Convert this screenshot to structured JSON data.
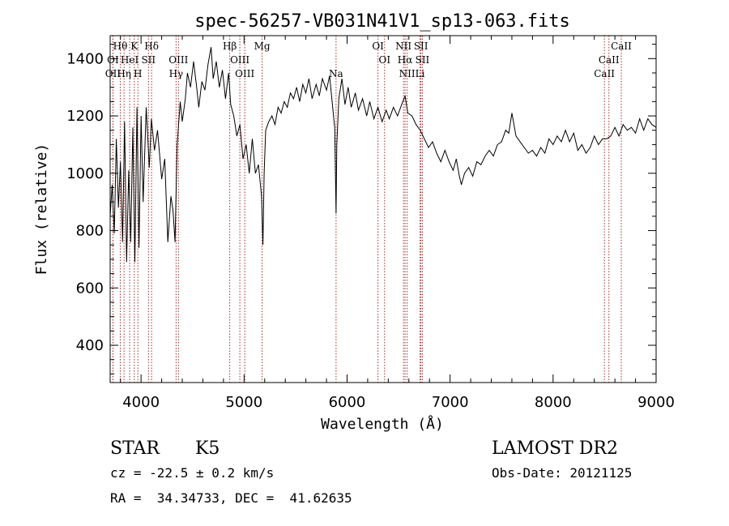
{
  "chart_data": {
    "type": "line",
    "title": "spec-56257-VB031N41V1_sp13-063.fits",
    "xlabel": "Wavelength (Å)",
    "ylabel": "Flux (relative)",
    "xlim": [
      3700,
      9000
    ],
    "ylim": [
      270,
      1480
    ],
    "xticks": [
      4000,
      5000,
      6000,
      7000,
      8000,
      9000
    ],
    "yticks": [
      400,
      600,
      800,
      1000,
      1200,
      1400
    ],
    "grid": false,
    "line_color": "#000000",
    "marker_color": "#a52a2a",
    "spectrum": [
      [
        3700,
        850
      ],
      [
        3720,
        960
      ],
      [
        3740,
        790
      ],
      [
        3760,
        1120
      ],
      [
        3780,
        880
      ],
      [
        3800,
        1040
      ],
      [
        3820,
        760
      ],
      [
        3840,
        1180
      ],
      [
        3860,
        690
      ],
      [
        3880,
        1010
      ],
      [
        3900,
        760
      ],
      [
        3920,
        1160
      ],
      [
        3940,
        690
      ],
      [
        3960,
        1230
      ],
      [
        3980,
        740
      ],
      [
        4000,
        1200
      ],
      [
        4020,
        900
      ],
      [
        4050,
        1230
      ],
      [
        4080,
        1020
      ],
      [
        4100,
        1190
      ],
      [
        4130,
        1080
      ],
      [
        4160,
        1150
      ],
      [
        4200,
        980
      ],
      [
        4230,
        1050
      ],
      [
        4260,
        760
      ],
      [
        4290,
        920
      ],
      [
        4310,
        870
      ],
      [
        4330,
        760
      ],
      [
        4350,
        1100
      ],
      [
        4380,
        1250
      ],
      [
        4400,
        1180
      ],
      [
        4430,
        1260
      ],
      [
        4450,
        1350
      ],
      [
        4480,
        1300
      ],
      [
        4510,
        1390
      ],
      [
        4540,
        1300
      ],
      [
        4560,
        1230
      ],
      [
        4590,
        1320
      ],
      [
        4620,
        1290
      ],
      [
        4650,
        1380
      ],
      [
        4680,
        1440
      ],
      [
        4700,
        1330
      ],
      [
        4730,
        1390
      ],
      [
        4760,
        1300
      ],
      [
        4790,
        1360
      ],
      [
        4820,
        1260
      ],
      [
        4850,
        1350
      ],
      [
        4870,
        1240
      ],
      [
        4900,
        1200
      ],
      [
        4930,
        1130
      ],
      [
        4960,
        1170
      ],
      [
        4990,
        1050
      ],
      [
        5020,
        1100
      ],
      [
        5050,
        1000
      ],
      [
        5080,
        1120
      ],
      [
        5110,
        1000
      ],
      [
        5140,
        1030
      ],
      [
        5170,
        920
      ],
      [
        5183,
        750
      ],
      [
        5195,
        1000
      ],
      [
        5210,
        1150
      ],
      [
        5240,
        1180
      ],
      [
        5270,
        1200
      ],
      [
        5300,
        1170
      ],
      [
        5330,
        1230
      ],
      [
        5360,
        1210
      ],
      [
        5390,
        1250
      ],
      [
        5420,
        1230
      ],
      [
        5450,
        1280
      ],
      [
        5480,
        1260
      ],
      [
        5510,
        1300
      ],
      [
        5540,
        1250
      ],
      [
        5570,
        1310
      ],
      [
        5600,
        1280
      ],
      [
        5630,
        1330
      ],
      [
        5660,
        1260
      ],
      [
        5700,
        1310
      ],
      [
        5730,
        1270
      ],
      [
        5760,
        1330
      ],
      [
        5800,
        1290
      ],
      [
        5830,
        1340
      ],
      [
        5860,
        1230
      ],
      [
        5880,
        1160
      ],
      [
        5893,
        860
      ],
      [
        5900,
        1100
      ],
      [
        5920,
        1260
      ],
      [
        5950,
        1330
      ],
      [
        5980,
        1240
      ],
      [
        6010,
        1300
      ],
      [
        6040,
        1230
      ],
      [
        6080,
        1280
      ],
      [
        6110,
        1220
      ],
      [
        6150,
        1260
      ],
      [
        6190,
        1200
      ],
      [
        6220,
        1250
      ],
      [
        6260,
        1190
      ],
      [
        6300,
        1230
      ],
      [
        6340,
        1180
      ],
      [
        6380,
        1220
      ],
      [
        6410,
        1190
      ],
      [
        6450,
        1230
      ],
      [
        6490,
        1200
      ],
      [
        6530,
        1240
      ],
      [
        6563,
        1270
      ],
      [
        6590,
        1210
      ],
      [
        6630,
        1200
      ],
      [
        6670,
        1170
      ],
      [
        6710,
        1150
      ],
      [
        6750,
        1120
      ],
      [
        6790,
        1090
      ],
      [
        6830,
        1110
      ],
      [
        6870,
        1070
      ],
      [
        6910,
        1040
      ],
      [
        6950,
        1080
      ],
      [
        6990,
        1040
      ],
      [
        7030,
        1010
      ],
      [
        7060,
        1050
      ],
      [
        7090,
        990
      ],
      [
        7110,
        960
      ],
      [
        7140,
        1000
      ],
      [
        7180,
        1020
      ],
      [
        7220,
        990
      ],
      [
        7260,
        1040
      ],
      [
        7300,
        1030
      ],
      [
        7340,
        1060
      ],
      [
        7380,
        1080
      ],
      [
        7420,
        1060
      ],
      [
        7460,
        1100
      ],
      [
        7500,
        1110
      ],
      [
        7540,
        1150
      ],
      [
        7570,
        1140
      ],
      [
        7600,
        1210
      ],
      [
        7640,
        1130
      ],
      [
        7680,
        1110
      ],
      [
        7720,
        1090
      ],
      [
        7760,
        1070
      ],
      [
        7800,
        1080
      ],
      [
        7840,
        1060
      ],
      [
        7880,
        1090
      ],
      [
        7920,
        1070
      ],
      [
        7960,
        1120
      ],
      [
        8000,
        1100
      ],
      [
        8040,
        1130
      ],
      [
        8080,
        1110
      ],
      [
        8120,
        1150
      ],
      [
        8160,
        1110
      ],
      [
        8200,
        1140
      ],
      [
        8240,
        1080
      ],
      [
        8280,
        1100
      ],
      [
        8320,
        1070
      ],
      [
        8360,
        1090
      ],
      [
        8400,
        1130
      ],
      [
        8440,
        1100
      ],
      [
        8480,
        1120
      ],
      [
        8520,
        1120
      ],
      [
        8560,
        1130
      ],
      [
        8600,
        1160
      ],
      [
        8640,
        1130
      ],
      [
        8680,
        1170
      ],
      [
        8720,
        1150
      ],
      [
        8760,
        1160
      ],
      [
        8800,
        1140
      ],
      [
        8840,
        1190
      ],
      [
        8880,
        1150
      ],
      [
        8920,
        1190
      ],
      [
        8960,
        1170
      ],
      [
        9000,
        1160
      ]
    ],
    "line_markers": [
      {
        "label": "Hθ",
        "wavelength": 3798,
        "row": 1
      },
      {
        "label": "K",
        "wavelength": 3934,
        "row": 1
      },
      {
        "label": "Hδ",
        "wavelength": 4102,
        "row": 1
      },
      {
        "label": "Hβ",
        "wavelength": 4861,
        "row": 1
      },
      {
        "label": "Mg",
        "wavelength": 5175,
        "row": 1
      },
      {
        "label": "OI",
        "wavelength": 6300,
        "row": 1
      },
      {
        "label": "NII",
        "wavelength": 6548,
        "row": 1
      },
      {
        "label": "SII",
        "wavelength": 6717,
        "row": 1
      },
      {
        "label": "CaII",
        "wavelength": 8662,
        "row": 1
      },
      {
        "label": "OI",
        "wavelength": 3727,
        "row": 2
      },
      {
        "label": "HeI",
        "wavelength": 3889,
        "row": 2
      },
      {
        "label": "SII",
        "wavelength": 4072,
        "row": 2
      },
      {
        "label": "OIII",
        "wavelength": 4363,
        "row": 2
      },
      {
        "label": "OIII",
        "wavelength": 4959,
        "row": 2
      },
      {
        "label": "OI",
        "wavelength": 6364,
        "row": 2
      },
      {
        "label": "Hα",
        "wavelength": 6563,
        "row": 2
      },
      {
        "label": "SII",
        "wavelength": 6731,
        "row": 2
      },
      {
        "label": "CaII",
        "wavelength": 8542,
        "row": 2
      },
      {
        "label": "OII",
        "wavelength": 3727,
        "row": 3
      },
      {
        "label": "Hη",
        "wavelength": 3835,
        "row": 3
      },
      {
        "label": "H",
        "wavelength": 3969,
        "row": 3
      },
      {
        "label": "Hγ",
        "wavelength": 4340,
        "row": 3
      },
      {
        "label": "OIII",
        "wavelength": 5007,
        "row": 3
      },
      {
        "label": "Na",
        "wavelength": 5893,
        "row": 3
      },
      {
        "label": "NII",
        "wavelength": 6583,
        "row": 3
      },
      {
        "label": "Li",
        "wavelength": 6708,
        "row": 3
      },
      {
        "label": "CaII",
        "wavelength": 8498,
        "row": 3
      }
    ]
  },
  "info": {
    "object_class": "STAR",
    "subclass": "K5",
    "survey": "LAMOST DR2",
    "redshift": "cz = -22.5 ± 0.2 km/s",
    "obs_date": "Obs-Date: 20121125",
    "coords": "RA =  34.34733, DEC =  41.62635"
  }
}
